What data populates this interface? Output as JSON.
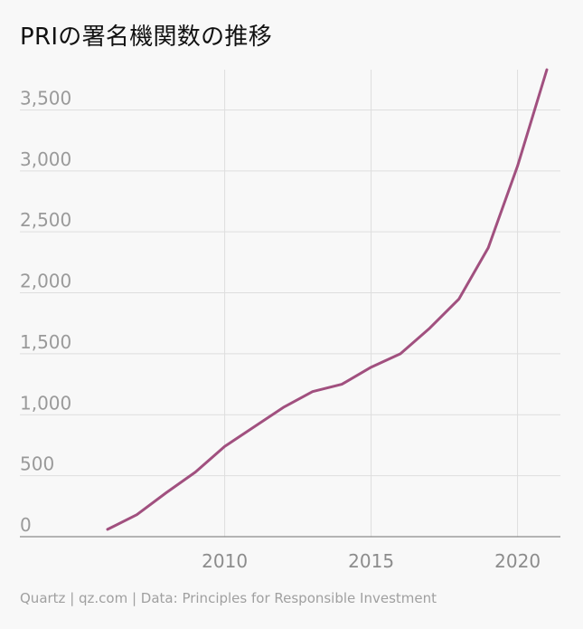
{
  "title": "PRIの署名機関数の推移",
  "footer": "Quartz | qz.com | Data: Principles for Responsible Investment",
  "colors": {
    "line": "#a1507f",
    "grid": "#dedede",
    "axis": "#8a8a8a",
    "background": "#f8f8f8"
  },
  "chart_data": {
    "type": "line",
    "title": "PRIの署名機関数の推移",
    "xlabel": "",
    "ylabel": "",
    "x": [
      2006,
      2007,
      2008,
      2009,
      2010,
      2011,
      2012,
      2013,
      2014,
      2015,
      2016,
      2017,
      2018,
      2019,
      2020,
      2021
    ],
    "series": [
      {
        "values": [
          60,
          180,
          360,
          530,
          740,
          900,
          1060,
          1190,
          1250,
          1390,
          1500,
          1710,
          1950,
          2370,
          3040,
          3830
        ]
      }
    ],
    "xticks": [
      2010,
      2015,
      2020
    ],
    "xtick_labels": [
      "2010",
      "2015",
      "2020"
    ],
    "yticks": [
      0,
      500,
      1000,
      1500,
      2000,
      2500,
      3000,
      3500
    ],
    "ytick_labels": [
      "0",
      "500",
      "1,000",
      "1,500",
      "2,000",
      "2,500",
      "3,000",
      "3,500"
    ],
    "xlim": [
      2006,
      2021
    ],
    "ylim": [
      0,
      3830
    ],
    "grid": true,
    "legend": "none"
  }
}
